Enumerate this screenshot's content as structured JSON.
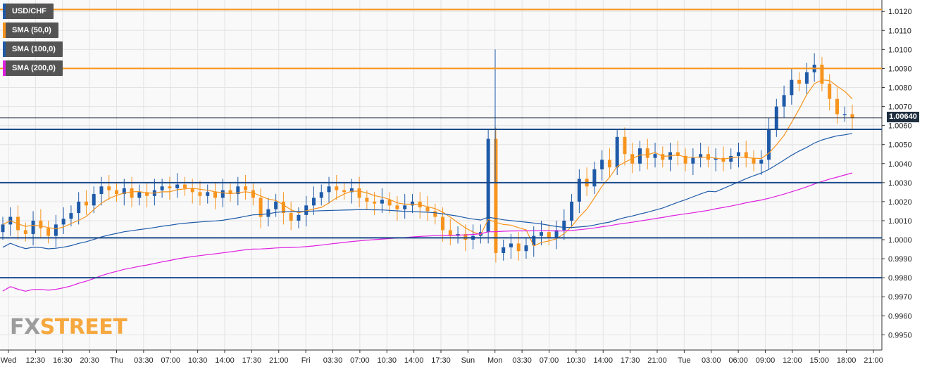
{
  "legend": [
    {
      "label": "USD/CHF",
      "color": "#1e5aa8"
    },
    {
      "label": "SMA (50,0)",
      "color": "#f7941d"
    },
    {
      "label": "SMA (100,0)",
      "color": "#1e5aa8"
    },
    {
      "label": "SMA (200,0)",
      "color": "#e020e0"
    }
  ],
  "watermark": {
    "part1": "FX",
    "part2": "STREET"
  },
  "current_price_label": "1.00640",
  "colors": {
    "bull": "#1e5aa8",
    "bear": "#f7941d",
    "sma50": "#f7941d",
    "sma100": "#1e5aa8",
    "sma200": "#e020e0",
    "level": "#1a4a8a",
    "resistance": "#f7941d"
  },
  "chart_data": {
    "type": "candlestick",
    "symbol": "USD/CHF",
    "ylim": [
      0.9942,
      1.0126
    ],
    "y_ticks": [
      "1.0120",
      "1.0110",
      "1.0100",
      "1.0090",
      "1.0080",
      "1.0070",
      "1.0060",
      "1.0050",
      "1.0040",
      "1.0030",
      "1.0020",
      "1.0010",
      "1.0000",
      "0.9990",
      "0.9980",
      "0.9970",
      "0.9960",
      "0.9950"
    ],
    "x_ticks": [
      "Wed",
      "12:30",
      "16:30",
      "20:30",
      "Thu",
      "03:30",
      "07:00",
      "10:30",
      "14:00",
      "17:30",
      "21:00",
      "Fri",
      "03:30",
      "07:00",
      "10:30",
      "14:00",
      "17:30",
      "Sun",
      "Mon",
      "03:30",
      "07:00",
      "10:30",
      "14:00",
      "17:30",
      "21:00",
      "Tue",
      "03:00",
      "06:00",
      "09:00",
      "12:00",
      "15:00",
      "18:00",
      "21:00"
    ],
    "horizontal_levels": [
      {
        "price": 1.0121,
        "kind": "resistance"
      },
      {
        "price": 1.009,
        "kind": "resistance"
      },
      {
        "price": 1.0058,
        "kind": "support"
      },
      {
        "price": 1.003,
        "kind": "support"
      },
      {
        "price": 1.0001,
        "kind": "support"
      },
      {
        "price": 0.998,
        "kind": "support"
      }
    ],
    "current_price": 1.0064,
    "candles_close": [
      1.0008,
      1.0012,
      1.0005,
      1.0003,
      1.001,
      1.0006,
      1.0002,
      1.0008,
      1.0011,
      1.0014,
      1.002,
      1.0018,
      1.0024,
      1.0028,
      1.0026,
      1.0024,
      1.0027,
      1.0022,
      1.0025,
      1.0023,
      1.0026,
      1.0028,
      1.0027,
      1.0029,
      1.0027,
      1.0025,
      1.0023,
      1.0025,
      1.0022,
      1.0026,
      1.0024,
      1.0028,
      1.0026,
      1.0022,
      1.0012,
      1.0016,
      1.002,
      1.0014,
      1.001,
      1.0013,
      1.0018,
      1.0022,
      1.0025,
      1.0028,
      1.0026,
      1.0025,
      1.0027,
      1.0022,
      1.002,
      1.0019,
      1.0021,
      1.0018,
      1.0016,
      1.0018,
      1.002,
      1.0017,
      1.0015,
      1.0012,
      1.0005,
      1.0002,
      1.0003,
      1.0,
      1.0002,
      1.0004,
      1.0053,
      0.9993,
      0.9996,
      0.9998,
      0.9994,
      0.9997,
      1.0002,
      1.0004,
      1.0001,
      1.0005,
      1.001,
      1.002,
      1.0032,
      1.0028,
      1.0037,
      1.0042,
      1.0038,
      1.0054,
      1.0045,
      1.004,
      1.0048,
      1.0043,
      1.0045,
      1.0042,
      1.0046,
      1.0044,
      1.004,
      1.0043,
      1.0045,
      1.0042,
      1.0043,
      1.0041,
      1.0044,
      1.0046,
      1.0043,
      1.004,
      1.0042,
      1.0058,
      1.007,
      1.0076,
      1.0084,
      1.0082,
      1.0088,
      1.0092,
      1.0082,
      1.0074,
      1.0066,
      1.0066,
      1.0064
    ]
  }
}
